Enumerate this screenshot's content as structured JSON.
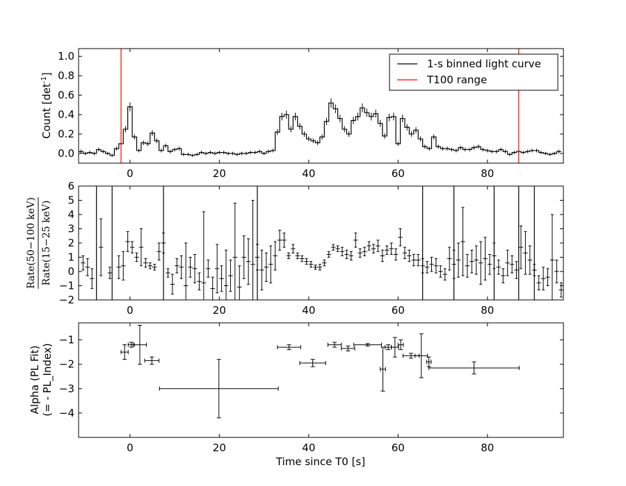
{
  "chart_data": [
    {
      "type": "line",
      "panel": "light-curve",
      "ylabel": "Count [det",
      "ylabel_sup": "-1",
      "ylabel_close": "]",
      "xlim": [
        -11.5,
        97
      ],
      "ylim": [
        -0.1,
        1.08
      ],
      "xticks": [
        0,
        20,
        40,
        60,
        80
      ],
      "xtick_labels": [
        "0",
        "20",
        "40",
        "60",
        "80"
      ],
      "yticks": [
        0.0,
        0.2,
        0.4,
        0.6,
        0.8,
        1.0
      ],
      "ytick_labels": [
        "0.0",
        "0.2",
        "0.4",
        "0.6",
        "0.8",
        "1.0"
      ],
      "legend": [
        "1-s binned light curve",
        "T100 range"
      ],
      "legend_position": "top-right",
      "t100_range": [
        -2,
        87
      ],
      "line_color": "#000000",
      "t100_color": "#ff0000",
      "bin_start": -11.5,
      "bin_width": 1,
      "values": [
        0.02,
        0.0,
        0.01,
        0.0,
        0.04,
        0.02,
        0.0,
        -0.02,
        0.05,
        0.1,
        0.25,
        0.48,
        0.17,
        0.03,
        0.11,
        0.1,
        0.21,
        0.13,
        0.03,
        0.08,
        0.02,
        0.04,
        0.05,
        -0.01,
        -0.01,
        -0.02,
        -0.01,
        0.01,
        0.0,
        0.01,
        0.0,
        0.01,
        0.01,
        0.0,
        0.0,
        -0.01,
        0.0,
        0.0,
        0.01,
        0.01,
        0.02,
        0.0,
        0.02,
        0.03,
        0.22,
        0.38,
        0.4,
        0.25,
        0.38,
        0.28,
        0.2,
        0.15,
        0.13,
        0.11,
        0.17,
        0.33,
        0.52,
        0.46,
        0.36,
        0.25,
        0.2,
        0.34,
        0.38,
        0.47,
        0.42,
        0.38,
        0.41,
        0.31,
        0.18,
        0.37,
        0.38,
        0.1,
        0.36,
        0.27,
        0.2,
        0.24,
        0.15,
        0.07,
        0.05,
        0.17,
        0.07,
        0.05,
        0.05,
        0.04,
        0.03,
        0.06,
        0.04,
        0.04,
        0.06,
        0.07,
        0.04,
        0.03,
        0.02,
        0.02,
        0.04,
        0.02,
        -0.01,
        0.01,
        0.02,
        0.01,
        0.02,
        0.03,
        0.03,
        0.01,
        0.0,
        -0.01,
        0.0,
        0.02
      ]
    },
    {
      "type": "scatter",
      "panel": "hardness-ratio",
      "ylabel_num": "Rate(50−100 keV)",
      "ylabel_den": "Rate(15−25 keV)",
      "xlim": [
        -11.5,
        97
      ],
      "ylim": [
        -2,
        6
      ],
      "xticks": [
        0,
        20,
        40,
        60,
        80
      ],
      "xtick_labels": [
        "0",
        "20",
        "40",
        "60",
        "80"
      ],
      "yticks": [
        -2,
        -1,
        0,
        1,
        2,
        3,
        4,
        5,
        6
      ],
      "ytick_labels": [
        "−2",
        "−1",
        "0",
        "1",
        "2",
        "3",
        "4",
        "5",
        "6"
      ],
      "points": [
        [
          -10.5,
          0.6,
          0.5
        ],
        [
          -9.5,
          0.3,
          0.6
        ],
        [
          -8.5,
          -0.5,
          0.7
        ],
        [
          -6.5,
          1.7,
          2.0
        ],
        [
          -4.5,
          -0.1,
          0.4
        ],
        [
          -2.5,
          0.3,
          0.8
        ],
        [
          -1.5,
          0.4,
          1.0
        ],
        [
          -0.5,
          2.1,
          0.7
        ],
        [
          0.5,
          1.7,
          0.4
        ],
        [
          1.5,
          1.0,
          0.3
        ],
        [
          2.5,
          1.7,
          1.3
        ],
        [
          3.5,
          0.6,
          0.3
        ],
        [
          4.5,
          0.4,
          0.2
        ],
        [
          5.5,
          0.3,
          0.2
        ],
        [
          6.5,
          1.4,
          0.6
        ],
        [
          7.5,
          2.0,
          0.7
        ],
        [
          8.5,
          -0.1,
          0.3
        ],
        [
          9.5,
          -0.9,
          0.7
        ],
        [
          10.5,
          0.4,
          0.5
        ],
        [
          11.5,
          0.3,
          0.8
        ],
        [
          12.5,
          -1.0,
          3.0
        ],
        [
          13.5,
          0.3,
          0.7
        ],
        [
          14.5,
          0.2,
          1.0
        ],
        [
          15.5,
          -0.7,
          0.6
        ],
        [
          16.5,
          -0.8,
          5.0
        ],
        [
          17.5,
          0.2,
          0.6
        ],
        [
          18.5,
          -1.2,
          0.8
        ],
        [
          19.5,
          0.2,
          1.7
        ],
        [
          20.5,
          -0.5,
          0.9
        ],
        [
          21.5,
          -1.0,
          2.5
        ],
        [
          22.5,
          -0.3,
          1.1
        ],
        [
          23.5,
          1.0,
          3.8
        ],
        [
          24.5,
          -1.1,
          1.5
        ],
        [
          25.5,
          1.0,
          1.5
        ],
        [
          26.5,
          0.7,
          1.6
        ],
        [
          27.5,
          0.5,
          4.5
        ],
        [
          28.5,
          1.0,
          0.9
        ],
        [
          29.5,
          0.1,
          1.4
        ],
        [
          30.5,
          0.3,
          1.0
        ],
        [
          31.5,
          0.5,
          1.3
        ],
        [
          32.5,
          1.1,
          1.0
        ],
        [
          33.5,
          2.2,
          0.7
        ],
        [
          34.5,
          2.2,
          0.5
        ],
        [
          35.5,
          1.1,
          0.2
        ],
        [
          36.5,
          1.6,
          0.3
        ],
        [
          37.5,
          1.1,
          0.2
        ],
        [
          38.5,
          0.9,
          0.2
        ],
        [
          39.5,
          0.7,
          0.2
        ],
        [
          40.5,
          0.5,
          0.2
        ],
        [
          41.5,
          0.3,
          0.15
        ],
        [
          42.5,
          0.3,
          0.2
        ],
        [
          43.5,
          0.6,
          0.2
        ],
        [
          44.5,
          1.2,
          0.2
        ],
        [
          45.5,
          1.7,
          0.2
        ],
        [
          46.5,
          1.6,
          0.2
        ],
        [
          47.5,
          1.4,
          0.3
        ],
        [
          48.5,
          1.2,
          0.3
        ],
        [
          49.5,
          1.1,
          0.3
        ],
        [
          50.5,
          2.2,
          0.5
        ],
        [
          51.5,
          1.3,
          0.3
        ],
        [
          52.5,
          1.4,
          0.3
        ],
        [
          53.5,
          1.8,
          0.3
        ],
        [
          54.5,
          1.6,
          0.3
        ],
        [
          55.5,
          1.8,
          0.4
        ],
        [
          56.5,
          1.1,
          0.4
        ],
        [
          57.5,
          1.5,
          0.3
        ],
        [
          58.5,
          1.6,
          0.4
        ],
        [
          59.5,
          1.2,
          0.4
        ],
        [
          60.5,
          2.4,
          0.6
        ],
        [
          61.5,
          1.3,
          0.4
        ],
        [
          62.5,
          1.1,
          0.4
        ],
        [
          63.5,
          0.8,
          0.4
        ],
        [
          64.5,
          0.8,
          0.4
        ],
        [
          65.5,
          0.4,
          0.5
        ],
        [
          66.5,
          0.3,
          0.4
        ],
        [
          67.5,
          0.5,
          0.5
        ],
        [
          68.5,
          0.4,
          0.5
        ],
        [
          69.5,
          0.0,
          0.4
        ],
        [
          70.5,
          -0.2,
          0.4
        ],
        [
          71.5,
          0.9,
          0.8
        ],
        [
          72.5,
          0.5,
          1.0
        ],
        [
          73.5,
          0.8,
          1.2
        ],
        [
          74.5,
          2.1,
          2.4
        ],
        [
          75.5,
          0.4,
          0.8
        ],
        [
          76.5,
          0.7,
          0.8
        ],
        [
          77.5,
          0.8,
          1.0
        ],
        [
          78.5,
          0.6,
          1.5
        ],
        [
          79.5,
          0.9,
          1.5
        ],
        [
          80.5,
          0.5,
          0.7
        ],
        [
          81.5,
          1.1,
          0.9
        ],
        [
          82.5,
          0.3,
          0.5
        ],
        [
          83.5,
          -0.3,
          0.5
        ],
        [
          84.5,
          0.6,
          0.9
        ],
        [
          85.5,
          0.5,
          0.6
        ],
        [
          86.5,
          0.1,
          0.6
        ],
        [
          87.5,
          1.7,
          1.5
        ],
        [
          88.5,
          1.3,
          1.5
        ],
        [
          89.5,
          0.8,
          1.0
        ],
        [
          90.5,
          0.1,
          0.4
        ],
        [
          91.5,
          -0.8,
          0.5
        ],
        [
          92.5,
          -0.5,
          0.8
        ],
        [
          93.5,
          -0.4,
          0.6
        ],
        [
          94.5,
          0.8,
          3.2
        ],
        [
          95.5,
          0.0,
          0.8
        ],
        [
          96.5,
          -1.3,
          0.5
        ]
      ],
      "spans": [
        -7.5,
        -4.0,
        7.5,
        28.5,
        65.5,
        72.5,
        81.5,
        87.0,
        90.5
      ]
    },
    {
      "type": "scatter",
      "panel": "pl-index",
      "ylabel_line1": "Alpha (PL Fit)",
      "ylabel_line2": "(= - PL_Index)",
      "xlabel": "Time since T0 [s]",
      "xlim": [
        -11.5,
        97
      ],
      "ylim": [
        -5,
        -0.3
      ],
      "xticks": [
        0,
        20,
        40,
        60,
        80
      ],
      "xtick_labels": [
        "0",
        "20",
        "40",
        "60",
        "80"
      ],
      "yticks": [
        -4,
        -3,
        -2,
        -1
      ],
      "ytick_labels": [
        "−4",
        "−3",
        "−2",
        "−1"
      ],
      "points": [
        [
          -1.2,
          0.8,
          -1.5,
          0.3
        ],
        [
          0.3,
          0.7,
          -1.2,
          0.1
        ],
        [
          2.2,
          1.5,
          -1.2,
          0.8
        ],
        [
          4.9,
          1.6,
          -1.85,
          0.15
        ],
        [
          19.9,
          13.3,
          -3.0,
          1.2
        ],
        [
          35.6,
          2.6,
          -1.3,
          0.1
        ],
        [
          40.9,
          2.9,
          -1.95,
          0.15
        ],
        [
          45.8,
          1.5,
          -1.2,
          0.1
        ],
        [
          48.8,
          1.5,
          -1.35,
          0.1
        ],
        [
          53.2,
          3.1,
          -1.2,
          0.05
        ],
        [
          56.6,
          0.6,
          -2.2,
          0.9
        ],
        [
          57.8,
          0.7,
          -1.3,
          0.1
        ],
        [
          59.3,
          0.8,
          -1.3,
          0.4
        ],
        [
          60.6,
          0.6,
          -1.2,
          0.2
        ],
        [
          62.9,
          1.8,
          -1.65,
          0.1
        ],
        [
          65.2,
          1.4,
          -1.65,
          0.9
        ],
        [
          66.9,
          0.5,
          -1.9,
          0.2
        ],
        [
          77.0,
          10.1,
          -2.15,
          0.25
        ]
      ]
    }
  ]
}
